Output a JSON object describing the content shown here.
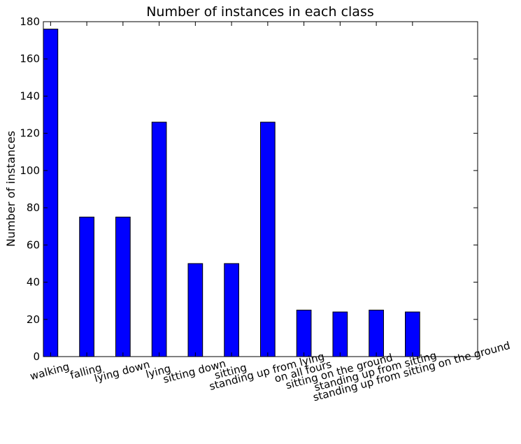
{
  "chart_data": {
    "type": "bar",
    "title": "Number of instances in each class",
    "xlabel": "",
    "ylabel": "Number of instances",
    "categories": [
      "walking",
      "falling",
      "lying down",
      "lying",
      "sitting down",
      "sitting",
      "standing up from lying",
      "on all fours",
      "sitting on the ground",
      "standing up from sitting",
      "standing up from sitting on the ground"
    ],
    "values": [
      176,
      75,
      75,
      126,
      50,
      50,
      126,
      25,
      24,
      25,
      24
    ],
    "ylim": [
      0,
      180
    ],
    "yticks": [
      0,
      20,
      40,
      60,
      80,
      100,
      120,
      140,
      160,
      180
    ],
    "grid": false,
    "colors": {
      "bar_fill": "#0000ff",
      "bar_edge": "#000000",
      "axis": "#000000",
      "background": "#ffffff"
    }
  }
}
